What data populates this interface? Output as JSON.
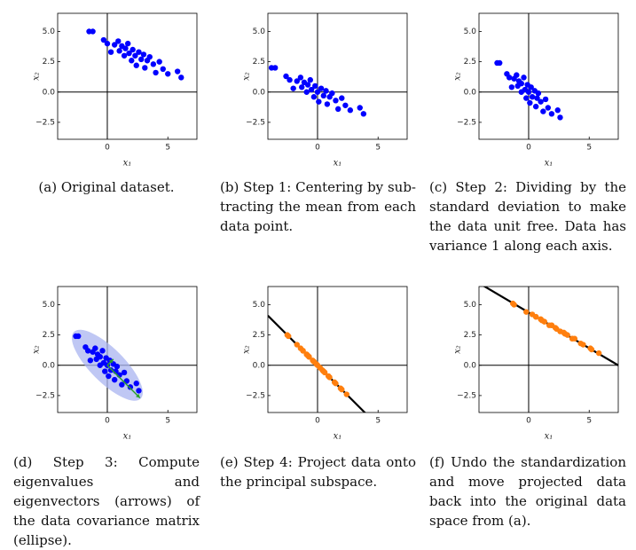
{
  "chart_data": [
    {
      "type": "scatter",
      "caption": "(a) Original dataset.",
      "x_label": "x₁",
      "y_label": "x₂",
      "xlim": [
        -4.1,
        7.4
      ],
      "ylim": [
        -3.9,
        6.5
      ],
      "xticks": [
        0,
        5
      ],
      "yticks": [
        {
          "value": -2.5,
          "label": "−2.5"
        },
        {
          "value": 0,
          "label": "0.0"
        },
        2.5,
        {
          "value": 5,
          "label": "5.0"
        }
      ],
      "series": [
        {
          "color": "#0000ff",
          "x": [
            -1.5,
            -1.2,
            -0.3,
            0.0,
            0.3,
            0.6,
            0.9,
            1.0,
            1.2,
            1.4,
            1.5,
            1.7,
            1.8,
            2.0,
            2.1,
            2.3,
            2.4,
            2.6,
            2.8,
            3.0,
            3.1,
            3.3,
            3.5,
            3.8,
            4.0,
            4.3,
            4.6,
            5.0,
            5.8,
            6.1
          ],
          "values": [
            5.0,
            5.0,
            4.3,
            4.0,
            3.3,
            3.9,
            4.2,
            3.4,
            3.8,
            3.0,
            3.6,
            4.0,
            3.2,
            2.6,
            3.5,
            3.0,
            2.2,
            3.3,
            2.7,
            3.1,
            2.0,
            2.6,
            2.9,
            2.3,
            1.6,
            2.5,
            1.9,
            1.5,
            1.7,
            1.2
          ]
        }
      ]
    },
    {
      "type": "scatter",
      "caption": "(b) Step 1: Centering by sub­tracting the mean from each data point.",
      "x_label": "x₁",
      "y_label": "x₂",
      "xlim": [
        -4.1,
        7.4
      ],
      "ylim": [
        -3.9,
        6.5
      ],
      "xticks": [
        0,
        5
      ],
      "yticks": [
        {
          "value": -2.5,
          "label": "−2.5"
        },
        {
          "value": 0,
          "label": "0.0"
        },
        2.5,
        {
          "value": 5,
          "label": "5.0"
        }
      ],
      "series": [
        {
          "color": "#0000ff",
          "x": [
            -3.8,
            -3.5,
            -2.6,
            -2.3,
            -2.0,
            -1.7,
            -1.4,
            -1.3,
            -1.1,
            -0.9,
            -0.8,
            -0.6,
            -0.5,
            -0.3,
            -0.2,
            0.0,
            0.1,
            0.3,
            0.5,
            0.7,
            0.8,
            1.0,
            1.2,
            1.5,
            1.7,
            2.0,
            2.3,
            2.7,
            3.5,
            3.8
          ],
          "values": [
            2.0,
            2.0,
            1.3,
            1.0,
            0.3,
            0.9,
            1.2,
            0.4,
            0.8,
            0.0,
            0.6,
            1.0,
            0.2,
            -0.4,
            0.5,
            0.0,
            -0.8,
            0.3,
            -0.3,
            0.1,
            -1.0,
            -0.4,
            -0.1,
            -0.7,
            -1.4,
            -0.5,
            -1.1,
            -1.5,
            -1.3,
            -1.8
          ]
        }
      ]
    },
    {
      "type": "scatter",
      "caption": "(c) Step 2: Dividing by the standard deviation to make the data unit free. Data has variance 1 along each axis.",
      "x_label": "x₁",
      "y_label": "x₂",
      "xlim": [
        -4.1,
        7.4
      ],
      "ylim": [
        -3.9,
        6.5
      ],
      "xticks": [
        0,
        5
      ],
      "yticks": [
        {
          "value": -2.5,
          "label": "−2.5"
        },
        {
          "value": 0,
          "label": "0.0"
        },
        2.5,
        {
          "value": 5,
          "label": "5.0"
        }
      ],
      "series": [
        {
          "color": "#0000ff",
          "x": [
            -2.6,
            -2.4,
            -1.8,
            -1.6,
            -1.4,
            -1.2,
            -1.0,
            -0.9,
            -0.8,
            -0.6,
            -0.6,
            -0.4,
            -0.3,
            -0.2,
            -0.1,
            0.0,
            0.1,
            0.2,
            0.3,
            0.5,
            0.6,
            0.7,
            0.8,
            1.0,
            1.2,
            1.4,
            1.6,
            1.9,
            2.4,
            2.6
          ],
          "values": [
            2.4,
            2.4,
            1.5,
            1.2,
            0.4,
            1.1,
            1.4,
            0.5,
            0.9,
            0.0,
            0.7,
            1.2,
            0.2,
            -0.5,
            0.6,
            0.0,
            -0.9,
            0.4,
            -0.4,
            0.1,
            -1.2,
            -0.5,
            -0.1,
            -0.8,
            -1.6,
            -0.6,
            -1.3,
            -1.8,
            -1.5,
            -2.1
          ]
        }
      ]
    },
    {
      "type": "scatter",
      "caption": "(d) Step 3: Compute eigenval­ues and eigenvectors (arrows) of the data covariance matrix (ellipse).",
      "x_label": "x₁",
      "y_label": "x₂",
      "xlim": [
        -4.1,
        7.4
      ],
      "ylim": [
        -3.9,
        6.5
      ],
      "xticks": [
        0,
        5
      ],
      "yticks": [
        {
          "value": -2.5,
          "label": "−2.5"
        },
        {
          "value": 0,
          "label": "0.0"
        },
        2.5,
        {
          "value": 5,
          "label": "5.0"
        }
      ],
      "ellipse": {
        "rx": 3.9,
        "ry": 1.4,
        "angle": -45,
        "color": "#aab4f0"
      },
      "arrows": [
        {
          "dx": 2.7,
          "dy": -2.7,
          "color": "#2ca02c"
        },
        {
          "dx": 0.5,
          "dy": 0.5,
          "color": "#2ca02c"
        }
      ],
      "series": [
        {
          "color": "#0000ff",
          "x": [
            -2.6,
            -2.4,
            -1.8,
            -1.6,
            -1.4,
            -1.2,
            -1.0,
            -0.9,
            -0.8,
            -0.6,
            -0.6,
            -0.4,
            -0.3,
            -0.2,
            -0.1,
            0.0,
            0.1,
            0.2,
            0.3,
            0.5,
            0.6,
            0.7,
            0.8,
            1.0,
            1.2,
            1.4,
            1.6,
            1.9,
            2.4,
            2.6
          ],
          "values": [
            2.4,
            2.4,
            1.5,
            1.2,
            0.4,
            1.1,
            1.4,
            0.5,
            0.9,
            0.0,
            0.7,
            1.2,
            0.2,
            -0.5,
            0.6,
            0.0,
            -0.9,
            0.4,
            -0.4,
            0.1,
            -1.2,
            -0.5,
            -0.1,
            -0.8,
            -1.6,
            -0.6,
            -1.3,
            -1.8,
            -1.5,
            -2.1
          ]
        }
      ]
    },
    {
      "type": "scatter",
      "caption": "(e) Step 4: Project data onto the principal subspace.",
      "x_label": "x₁",
      "y_label": "x₂",
      "xlim": [
        -4.1,
        7.4
      ],
      "ylim": [
        -3.9,
        6.5
      ],
      "xticks": [
        0,
        5
      ],
      "yticks": [
        {
          "value": -2.5,
          "label": "−2.5"
        },
        {
          "value": 0,
          "label": "0.0"
        },
        2.5,
        {
          "value": 5,
          "label": "5.0"
        }
      ],
      "line": {
        "slope": -1,
        "intercept": 0,
        "color": "#000000"
      },
      "series": [
        {
          "color": "#ff7f0e",
          "x": [
            -2.5,
            -2.4,
            -1.7,
            -1.4,
            -0.9,
            -1.2,
            -1.2,
            -0.7,
            -0.9,
            -0.3,
            -0.7,
            -0.8,
            -0.3,
            0.2,
            -0.4,
            0.0,
            0.5,
            -0.1,
            0.4,
            0.2,
            0.9,
            0.6,
            0.5,
            0.9,
            1.4,
            1.0,
            1.5,
            1.9,
            2.0,
            2.4
          ],
          "values": [
            2.5,
            2.4,
            1.7,
            1.4,
            0.9,
            1.2,
            1.2,
            0.7,
            0.9,
            0.3,
            0.7,
            0.8,
            0.3,
            -0.2,
            0.4,
            0.0,
            -0.5,
            0.1,
            -0.4,
            -0.2,
            -0.9,
            -0.6,
            -0.5,
            -0.9,
            -1.4,
            -1.0,
            -1.5,
            -1.9,
            -2.0,
            -2.4
          ]
        }
      ]
    },
    {
      "type": "scatter",
      "caption": "(f) Undo the standardization and move projected data back into the original data space from (a).",
      "x_label": "x₁",
      "y_label": "x₂",
      "xlim": [
        -4.1,
        7.4
      ],
      "ylim": [
        -3.9,
        6.5
      ],
      "xticks": [
        0,
        5
      ],
      "yticks": [
        {
          "value": -2.5,
          "label": "−2.5"
        },
        {
          "value": 0,
          "label": "0.0"
        },
        2.5,
        {
          "value": 5,
          "label": "5.0"
        }
      ],
      "line": {
        "slope": -0.59,
        "intercept": 4.36,
        "color": "#000000"
      },
      "series": [
        {
          "color": "#ff7f0e",
          "x": [
            -1.3,
            -1.2,
            -0.2,
            0.3,
            1.0,
            0.6,
            0.6,
            1.3,
            1.0,
            1.9,
            1.3,
            1.1,
            1.9,
            2.6,
            1.7,
            2.3,
            3.0,
            2.2,
            2.9,
            2.6,
            3.6,
            3.2,
            3.0,
            3.6,
            4.3,
            3.8,
            4.5,
            5.1,
            5.2,
            5.8
          ],
          "values": [
            5.1,
            5.0,
            4.4,
            4.2,
            3.8,
            4.0,
            4.0,
            3.6,
            3.8,
            3.3,
            3.6,
            3.7,
            3.3,
            2.8,
            3.3,
            3.0,
            2.6,
            3.1,
            2.7,
            2.8,
            2.2,
            2.5,
            2.6,
            2.2,
            1.8,
            2.2,
            1.7,
            1.4,
            1.3,
            1.0
          ]
        }
      ]
    }
  ]
}
